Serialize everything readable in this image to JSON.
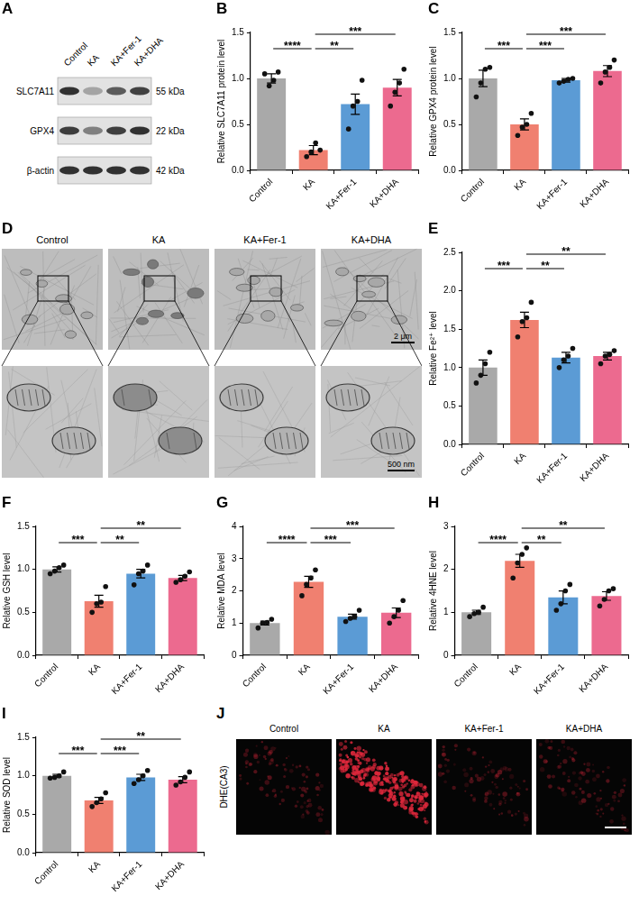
{
  "chart_data": [
    {
      "panel": "B",
      "type": "bar",
      "y_label": "Relative SLC7A11 protein level",
      "categories": [
        "Control",
        "KA",
        "KA+Fer-1",
        "KA+DHA"
      ],
      "values": [
        1.0,
        0.22,
        0.72,
        0.9
      ],
      "errors": [
        0.05,
        0.05,
        0.11,
        0.09
      ],
      "points": [
        [
          1.05,
          0.92,
          0.98,
          1.07
        ],
        [
          0.15,
          0.2,
          0.3,
          0.22
        ],
        [
          0.45,
          0.7,
          0.75,
          0.98
        ],
        [
          0.7,
          0.85,
          0.95,
          1.1
        ]
      ],
      "colors": [
        "#a9a9a9",
        "#f08070",
        "#5b9bd5",
        "#ec6a8f"
      ],
      "ylim": [
        0,
        1.5
      ],
      "yticks": [
        {
          "value": 0,
          "label": "0.0"
        },
        0.5,
        {
          "value": 1,
          "label": "1.0"
        },
        1.5
      ],
      "grid": false,
      "significance": [
        {
          "from": "Control",
          "to": "KA",
          "label": "****"
        },
        {
          "from": "KA",
          "to": "KA+Fer-1",
          "label": "**"
        },
        {
          "from": "KA",
          "to": "KA+DHA",
          "label": "***"
        }
      ]
    },
    {
      "panel": "C",
      "type": "bar",
      "y_label": "Relative GPX4 protein level",
      "categories": [
        "Control",
        "KA",
        "KA+Fer-1",
        "KA+DHA"
      ],
      "values": [
        1.0,
        0.5,
        0.98,
        1.08
      ],
      "errors": [
        0.09,
        0.06,
        0.02,
        0.06
      ],
      "points": [
        [
          0.8,
          0.95,
          1.1,
          1.12
        ],
        [
          0.38,
          0.47,
          0.5,
          0.62
        ],
        [
          0.95,
          0.97,
          0.99,
          1.0
        ],
        [
          0.95,
          1.07,
          1.12,
          1.2
        ]
      ],
      "colors": [
        "#a9a9a9",
        "#f08070",
        "#5b9bd5",
        "#ec6a8f"
      ],
      "ylim": [
        0,
        1.5
      ],
      "yticks": [
        {
          "value": 0,
          "label": "0.0"
        },
        0.5,
        {
          "value": 1,
          "label": "1.0"
        },
        1.5
      ],
      "grid": false,
      "significance": [
        {
          "from": "Control",
          "to": "KA",
          "label": "***"
        },
        {
          "from": "KA",
          "to": "KA+Fer-1",
          "label": "***"
        },
        {
          "from": "KA",
          "to": "KA+DHA",
          "label": "***"
        }
      ]
    },
    {
      "panel": "E",
      "type": "bar",
      "y_label": "Relative Fe²⁺ level",
      "categories": [
        "Control",
        "KA",
        "KA+Fer-1",
        "KA+DHA"
      ],
      "values": [
        1.0,
        1.62,
        1.13,
        1.15
      ],
      "errors": [
        0.1,
        0.1,
        0.07,
        0.05
      ],
      "points": [
        [
          0.8,
          0.9,
          1.05,
          1.2
        ],
        [
          1.4,
          1.6,
          1.65,
          1.85
        ],
        [
          1.0,
          1.1,
          1.15,
          1.25
        ],
        [
          1.05,
          1.15,
          1.17,
          1.22
        ]
      ],
      "colors": [
        "#a9a9a9",
        "#f08070",
        "#5b9bd5",
        "#ec6a8f"
      ],
      "ylim": [
        0,
        2.5
      ],
      "yticks": [
        {
          "value": 0,
          "label": "0.0"
        },
        0.5,
        {
          "value": 1,
          "label": "1.0"
        },
        1.5,
        {
          "value": 2,
          "label": "2.0"
        },
        2.5
      ],
      "grid": false,
      "significance": [
        {
          "from": "Control",
          "to": "KA",
          "label": "***"
        },
        {
          "from": "KA",
          "to": "KA+Fer-1",
          "label": "**"
        },
        {
          "from": "KA",
          "to": "KA+DHA",
          "label": "**"
        }
      ]
    },
    {
      "panel": "F",
      "type": "bar",
      "y_label": "Relative GSH level",
      "categories": [
        "Control",
        "KA",
        "KA+Fer-1",
        "KA+DHA"
      ],
      "values": [
        1.0,
        0.63,
        0.95,
        0.9
      ],
      "errors": [
        0.03,
        0.07,
        0.05,
        0.03
      ],
      "points": [
        [
          0.95,
          0.98,
          1.02,
          1.05
        ],
        [
          0.5,
          0.6,
          0.62,
          0.8
        ],
        [
          0.82,
          0.95,
          0.98,
          1.05
        ],
        [
          0.85,
          0.88,
          0.92,
          0.97
        ]
      ],
      "colors": [
        "#a9a9a9",
        "#f08070",
        "#5b9bd5",
        "#ec6a8f"
      ],
      "ylim": [
        0,
        1.5
      ],
      "yticks": [
        {
          "value": 0,
          "label": "0.0"
        },
        0.5,
        {
          "value": 1,
          "label": "1.0"
        },
        1.5
      ],
      "grid": false,
      "significance": [
        {
          "from": "Control",
          "to": "KA",
          "label": "***"
        },
        {
          "from": "KA",
          "to": "KA+Fer-1",
          "label": "**"
        },
        {
          "from": "KA",
          "to": "KA+DHA",
          "label": "**"
        }
      ]
    },
    {
      "panel": "G",
      "type": "bar",
      "y_label": "Relative MDA level",
      "categories": [
        "Control",
        "KA",
        "KA+Fer-1",
        "KA+DHA"
      ],
      "values": [
        1.0,
        2.28,
        1.2,
        1.32
      ],
      "errors": [
        0.06,
        0.17,
        0.08,
        0.15
      ],
      "points": [
        [
          0.85,
          1.0,
          1.02,
          1.12
        ],
        [
          1.85,
          2.2,
          2.4,
          2.65
        ],
        [
          1.05,
          1.15,
          1.2,
          1.4
        ],
        [
          1.0,
          1.2,
          1.4,
          1.7
        ]
      ],
      "colors": [
        "#a9a9a9",
        "#f08070",
        "#5b9bd5",
        "#ec6a8f"
      ],
      "ylim": [
        0,
        4
      ],
      "yticks": [
        0,
        1,
        2,
        3,
        4
      ],
      "grid": false,
      "significance": [
        {
          "from": "Control",
          "to": "KA",
          "label": "****"
        },
        {
          "from": "KA",
          "to": "KA+Fer-1",
          "label": "***"
        },
        {
          "from": "KA",
          "to": "KA+DHA",
          "label": "***"
        }
      ]
    },
    {
      "panel": "H",
      "type": "bar",
      "y_label": "Relative 4HNE level",
      "categories": [
        "Control",
        "KA",
        "KA+Fer-1",
        "KA+DHA"
      ],
      "values": [
        1.0,
        2.2,
        1.35,
        1.38
      ],
      "errors": [
        0.05,
        0.15,
        0.15,
        0.1
      ],
      "points": [
        [
          0.9,
          0.97,
          1.0,
          1.12
        ],
        [
          1.8,
          2.15,
          2.35,
          2.5
        ],
        [
          1.05,
          1.2,
          1.5,
          1.65
        ],
        [
          1.15,
          1.3,
          1.5,
          1.55
        ]
      ],
      "colors": [
        "#a9a9a9",
        "#f08070",
        "#5b9bd5",
        "#ec6a8f"
      ],
      "ylim": [
        0,
        3
      ],
      "yticks": [
        0,
        1,
        2,
        3
      ],
      "grid": false,
      "significance": [
        {
          "from": "Control",
          "to": "KA",
          "label": "****"
        },
        {
          "from": "KA",
          "to": "KA+Fer-1",
          "label": "**"
        },
        {
          "from": "KA",
          "to": "KA+DHA",
          "label": "**"
        }
      ]
    },
    {
      "panel": "I",
      "type": "bar",
      "y_label": "Relative SOD level",
      "categories": [
        "Control",
        "KA",
        "KA+Fer-1",
        "KA+DHA"
      ],
      "values": [
        1.0,
        0.68,
        0.98,
        0.95
      ],
      "errors": [
        0.02,
        0.04,
        0.04,
        0.04
      ],
      "points": [
        [
          0.97,
          0.98,
          1.0,
          1.05
        ],
        [
          0.6,
          0.65,
          0.7,
          0.78
        ],
        [
          0.9,
          0.95,
          1.0,
          1.07
        ],
        [
          0.88,
          0.92,
          0.98,
          1.05
        ]
      ],
      "colors": [
        "#a9a9a9",
        "#f08070",
        "#5b9bd5",
        "#ec6a8f"
      ],
      "ylim": [
        0,
        1.5
      ],
      "yticks": [
        {
          "value": 0,
          "label": "0.0"
        },
        0.5,
        {
          "value": 1,
          "label": "1.0"
        },
        1.5
      ],
      "grid": false,
      "significance": [
        {
          "from": "Control",
          "to": "KA",
          "label": "***"
        },
        {
          "from": "KA",
          "to": "KA+Fer-1",
          "label": "***"
        },
        {
          "from": "KA",
          "to": "KA+DHA",
          "label": "**"
        }
      ]
    }
  ],
  "blot": {
    "panel": "A",
    "lanes": [
      "Control",
      "KA",
      "KA+Fer-1",
      "KA+DHA"
    ],
    "rows": [
      {
        "name": "SLC7A11",
        "size": "55 kDa",
        "chart": "B"
      },
      {
        "name": "GPX4",
        "size": "22 kDa",
        "chart": "C"
      },
      {
        "name": "β-actin",
        "size": "42 kDa"
      }
    ]
  },
  "tem": {
    "panel": "D",
    "groups": [
      "Control",
      "KA",
      "KA+Fer-1",
      "KA+DHA"
    ],
    "scale_bars": [
      "2 μm",
      "500 nm"
    ]
  },
  "dhe": {
    "panel": "J",
    "row_label": "DHE(CA3)",
    "groups": [
      "Control",
      "KA",
      "KA+Fer-1",
      "KA+DHA"
    ]
  }
}
